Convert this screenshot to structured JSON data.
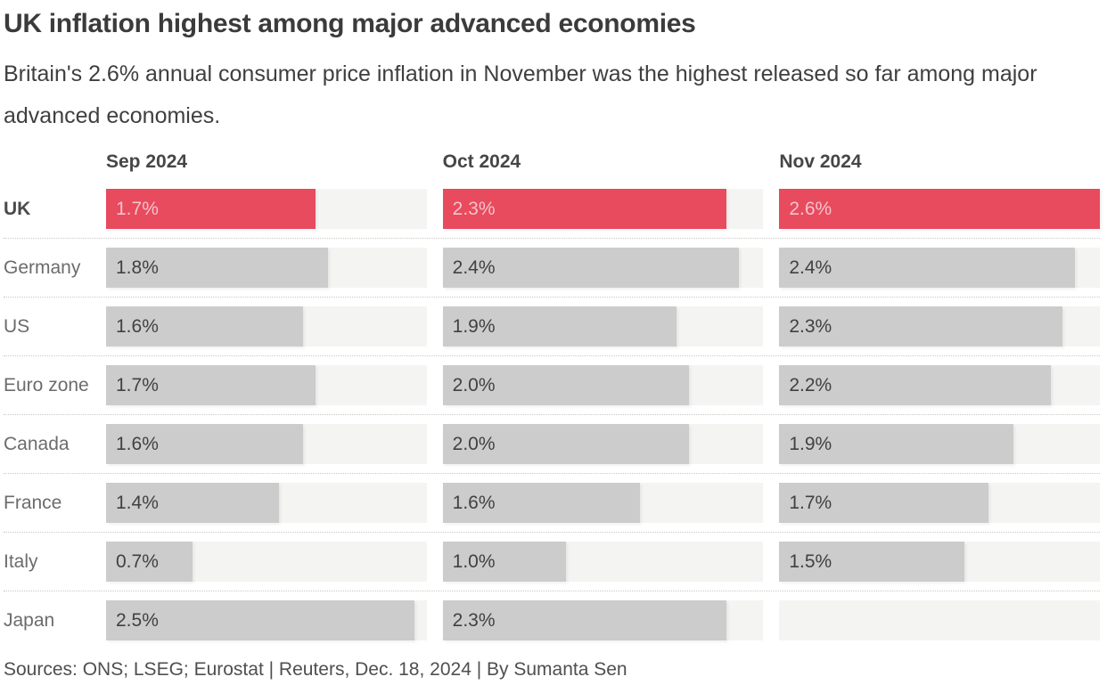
{
  "header": {
    "title": "UK inflation highest among major advanced economies",
    "subtitle": "Britain's 2.6% annual consumer price inflation in November was the highest released so far among major advanced economies."
  },
  "footer": {
    "text": "Sources: ONS; LSEG; Eurostat | Reuters, Dec. 18, 2024 | By Sumanta Sen"
  },
  "chart_data": {
    "type": "bar",
    "layout": "small-multiples-horizontal-bars",
    "title": "UK inflation highest among major advanced economies",
    "categories": [
      "UK",
      "Germany",
      "US",
      "Euro zone",
      "Canada",
      "France",
      "Italy",
      "Japan"
    ],
    "series": [
      {
        "name": "Sep 2024",
        "values": [
          1.7,
          1.8,
          1.6,
          1.7,
          1.6,
          1.4,
          0.7,
          2.5
        ]
      },
      {
        "name": "Oct 2024",
        "values": [
          2.3,
          2.4,
          1.9,
          2.0,
          2.0,
          1.6,
          1.0,
          2.3
        ]
      },
      {
        "name": "Nov 2024",
        "values": [
          2.6,
          2.4,
          2.3,
          2.2,
          1.9,
          1.7,
          1.5,
          null
        ]
      }
    ],
    "value_suffix": "%",
    "xlim": [
      0,
      2.6
    ],
    "grid": false,
    "legend": "none",
    "highlight_category": "UK",
    "colors": {
      "highlight_bar": "#e84a5e",
      "default_bar": "#cccccc",
      "track": "#f4f4f2",
      "highlight_label": "#f3c4ca",
      "default_label": "#414141"
    }
  }
}
